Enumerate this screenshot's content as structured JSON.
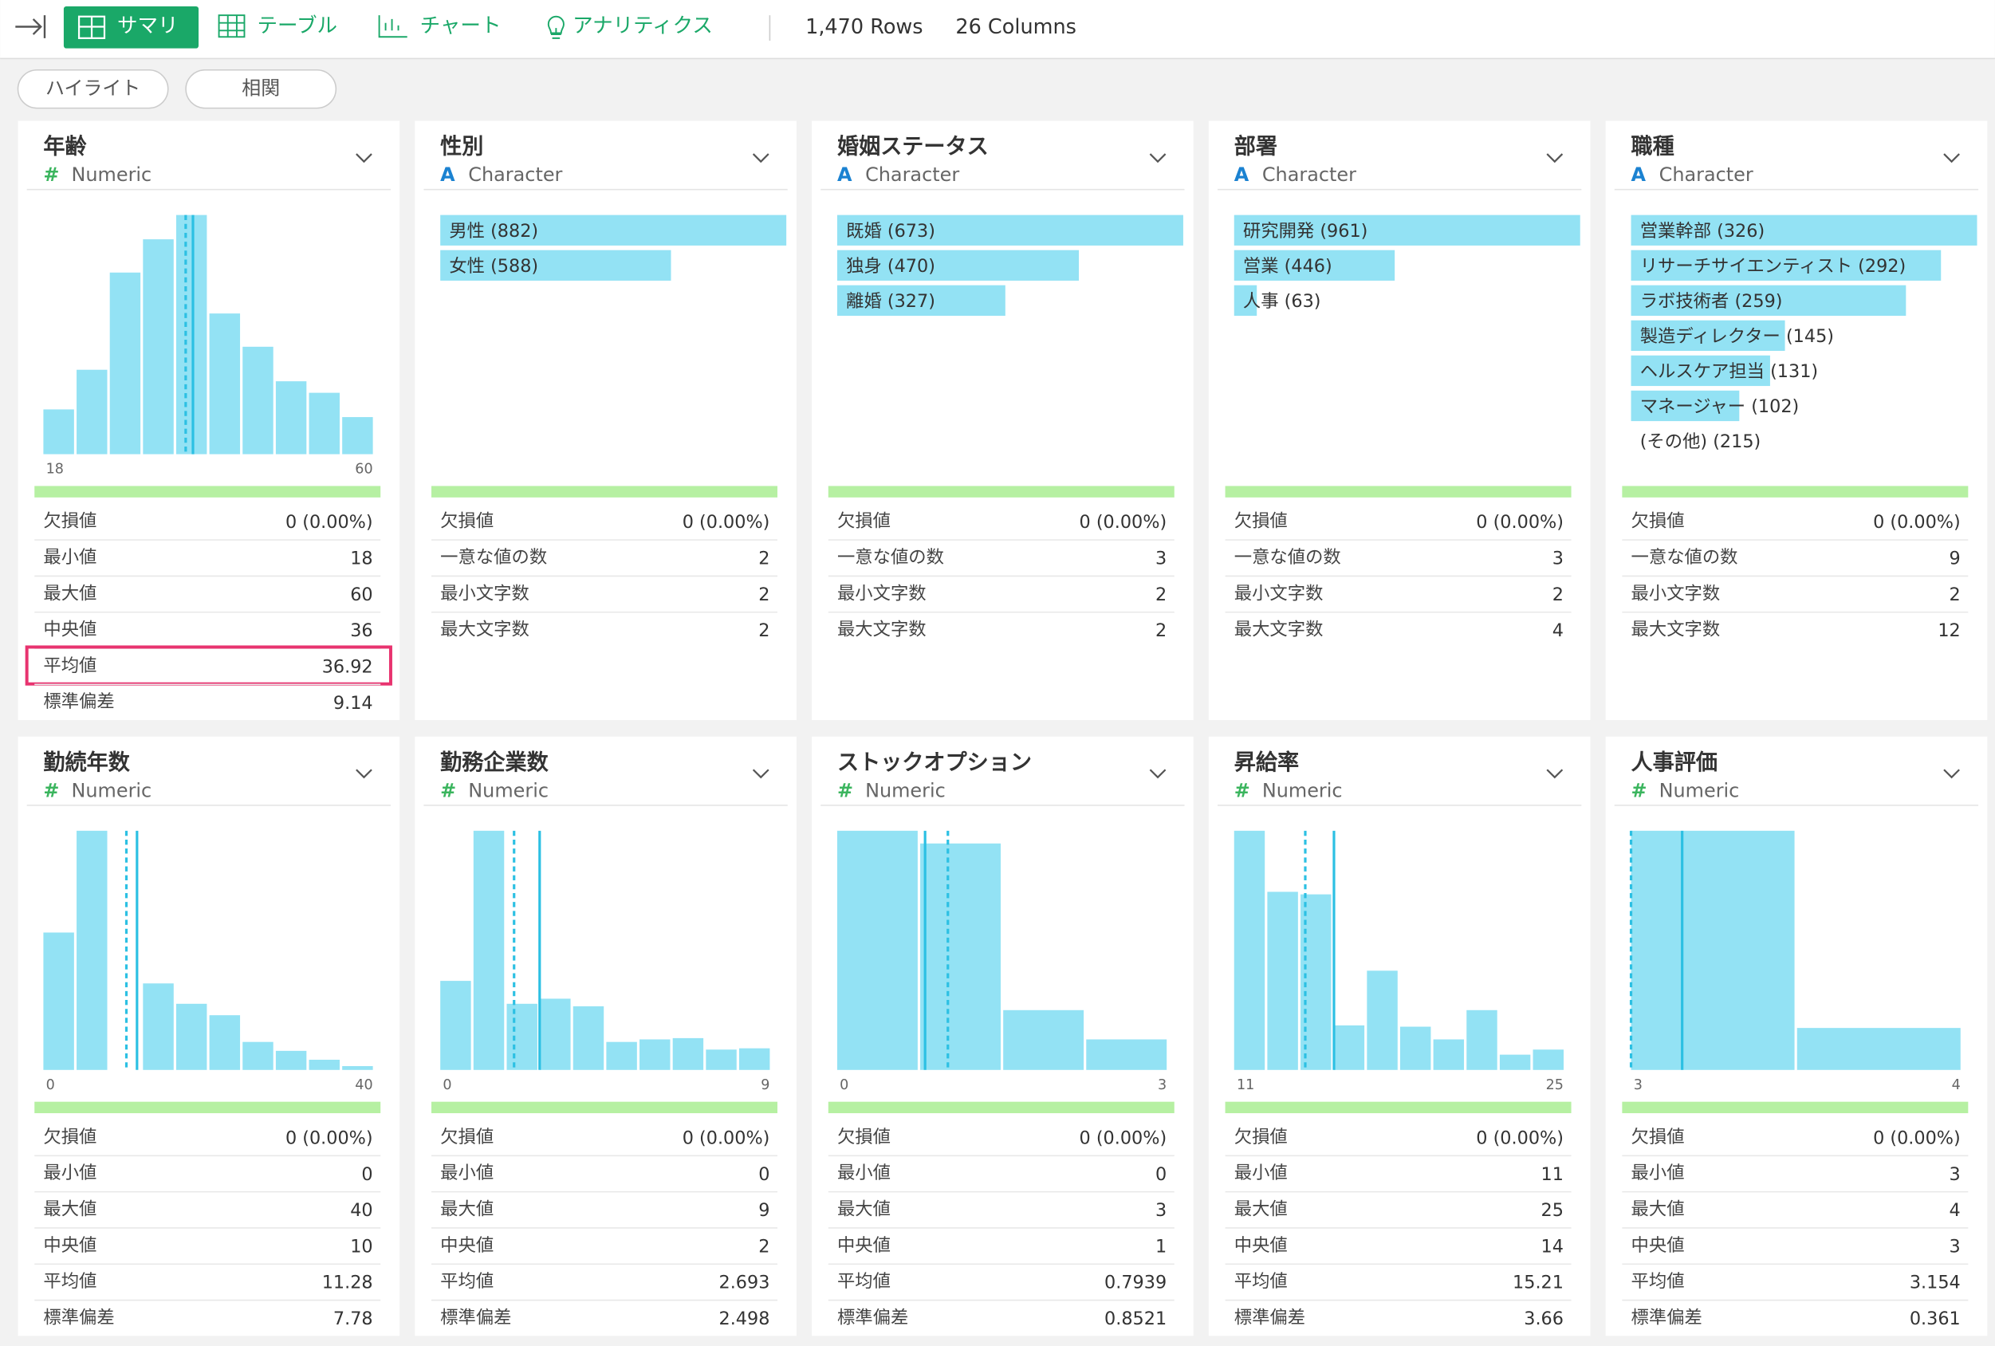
{
  "toolbar": {
    "tabs": [
      "サマリ",
      "テーブル",
      "チャート",
      "アナリティクス"
    ],
    "rows": "1,470 Rows",
    "columns": "26 Columns"
  },
  "buttons": [
    "ハイライト",
    "相関"
  ],
  "cards": [
    {
      "title": "年齢",
      "icon": "#",
      "type": "Numeric",
      "hist": [
        35,
        66,
        142,
        168,
        187,
        110,
        84,
        57,
        48,
        29
      ],
      "axis": [
        18,
        60
      ],
      "stats": [
        {
          "label": "欠損値",
          "value": "0 (0.00%)"
        },
        {
          "label": "最小値",
          "value": 18
        },
        {
          "label": "最大値",
          "value": 60
        },
        {
          "label": "中央値",
          "value": 36
        },
        {
          "label": "平均値",
          "value": 36.92
        },
        {
          "label": "標準偏差",
          "value": 9.14
        }
      ],
      "highlight_stat": 4
    },
    {
      "title": "性別",
      "icon": "A",
      "type": "Character",
      "labels": [
        "男性 (882)",
        "女性 (588)"
      ],
      "counts": [
        882,
        588
      ],
      "stats": [
        {
          "label": "欠損値",
          "value": "0 (0.00%)"
        },
        {
          "label": "一意な値の数",
          "value": 2
        },
        {
          "label": "最小文字数",
          "value": 2
        },
        {
          "label": "最大文字数",
          "value": 2
        }
      ]
    },
    {
      "title": "婚姻ステータス",
      "icon": "A",
      "type": "Character",
      "labels": [
        "既婚 (673)",
        "独身 (470)",
        "離婚 (327)"
      ],
      "counts": [
        673,
        470,
        327
      ],
      "stats": [
        {
          "label": "欠損値",
          "value": "0 (0.00%)"
        },
        {
          "label": "一意な値の数",
          "value": 3
        },
        {
          "label": "最小文字数",
          "value": 2
        },
        {
          "label": "最大文字数",
          "value": 2
        }
      ]
    },
    {
      "title": "部署",
      "icon": "A",
      "type": "Character",
      "labels": [
        "研究開発 (961)",
        "営業 (446)",
        "人事 (63)"
      ],
      "counts": [
        961,
        446,
        63
      ],
      "stats": [
        {
          "label": "欠損値",
          "value": "0 (0.00%)"
        },
        {
          "label": "一意な値の数",
          "value": 3
        },
        {
          "label": "最小文字数",
          "value": 2
        },
        {
          "label": "最大文字数",
          "value": 4
        }
      ]
    },
    {
      "title": "職種",
      "icon": "A",
      "type": "Character",
      "labels": [
        "営業幹部 (326)",
        "リサーチサイエンティスト (292)",
        "ラボ技術者 (259)",
        "製造ディレクター (145)",
        "ヘルスケア担当 (131)",
        "マネージャー (102)",
        "(その他) (215)"
      ],
      "counts": [
        326,
        292,
        259,
        145,
        131,
        102,
        null
      ],
      "stats": [
        {
          "label": "欠損値",
          "value": "0 (0.00%)"
        },
        {
          "label": "一意な値の数",
          "value": 9
        },
        {
          "label": "最小文字数",
          "value": 2
        },
        {
          "label": "最大文字数",
          "value": 12
        }
      ]
    },
    {
      "title": "勤続年数",
      "icon": "#",
      "type": "Numeric",
      "hist": [
        108,
        188,
        0,
        68,
        52,
        43,
        22,
        15,
        8,
        3
      ],
      "axis": [
        0,
        40
      ],
      "stats": [
        {
          "label": "欠損値",
          "value": "0 (0.00%)"
        },
        {
          "label": "最小値",
          "value": 0
        },
        {
          "label": "最大値",
          "value": 40
        },
        {
          "label": "中央値",
          "value": 10
        },
        {
          "label": "平均値",
          "value": 11.28
        },
        {
          "label": "標準偏差",
          "value": 7.78
        }
      ]
    },
    {
      "title": "勤務企業数",
      "icon": "#",
      "type": "Numeric",
      "hist": [
        70,
        188,
        52,
        56,
        50,
        22,
        24,
        25,
        16,
        17
      ],
      "axis": [
        0,
        9
      ],
      "stats": [
        {
          "label": "欠損値",
          "value": "0 (0.00%)"
        },
        {
          "label": "最小値",
          "value": 0
        },
        {
          "label": "最大値",
          "value": 9
        },
        {
          "label": "中央値",
          "value": 2
        },
        {
          "label": "平均値",
          "value": 2.693
        },
        {
          "label": "標準偏差",
          "value": 2.498
        }
      ]
    },
    {
      "title": "ストックオプション",
      "icon": "#",
      "type": "Numeric",
      "hist": [
        188,
        178,
        47,
        24
      ],
      "axis": [
        0,
        3
      ],
      "stats": [
        {
          "label": "欠損値",
          "value": "0 (0.00%)"
        },
        {
          "label": "最小値",
          "value": 0
        },
        {
          "label": "最大値",
          "value": 3
        },
        {
          "label": "中央値",
          "value": 1
        },
        {
          "label": "平均値",
          "value": 0.7939
        },
        {
          "label": "標準偏差",
          "value": 0.8521
        }
      ]
    },
    {
      "title": "昇給率",
      "icon": "#",
      "type": "Numeric",
      "hist": [
        188,
        140,
        138,
        35,
        78,
        34,
        24,
        47,
        12,
        16
      ],
      "axis": [
        11,
        25
      ],
      "stats": [
        {
          "label": "欠損値",
          "value": "0 (0.00%)"
        },
        {
          "label": "最小値",
          "value": 11
        },
        {
          "label": "最大値",
          "value": 25
        },
        {
          "label": "中央値",
          "value": 14
        },
        {
          "label": "平均値",
          "value": 15.21
        },
        {
          "label": "標準偏差",
          "value": 3.66
        }
      ]
    },
    {
      "title": "人事評価",
      "icon": "#",
      "type": "Numeric",
      "hist": [
        188,
        33
      ],
      "axis": [
        3,
        4
      ],
      "stats": [
        {
          "label": "欠損値",
          "value": "0 (0.00%)"
        },
        {
          "label": "最小値",
          "value": 3
        },
        {
          "label": "最大値",
          "value": 4
        },
        {
          "label": "中央値",
          "value": 3
        },
        {
          "label": "平均値",
          "value": 3.154
        },
        {
          "label": "標準偏差",
          "value": 0.361
        }
      ]
    }
  ]
}
